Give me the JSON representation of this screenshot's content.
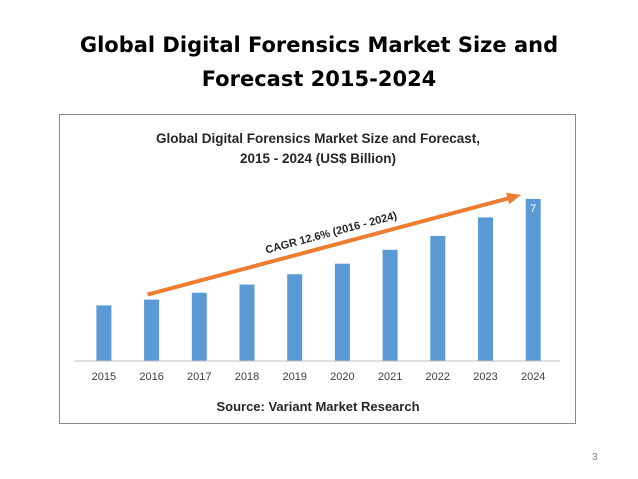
{
  "slide": {
    "title_line1": "Global Digital Forensics Market Size and",
    "title_line2": "Forecast 2015-2024",
    "page_number": "3"
  },
  "chart_data": {
    "type": "bar",
    "title_line1": "Global Digital Forensics Market Size and Forecast,",
    "title_line2": "2015 - 2024 (US$ Billion)",
    "categories": [
      "2015",
      "2016",
      "2017",
      "2018",
      "2019",
      "2020",
      "2021",
      "2022",
      "2023",
      "2024"
    ],
    "values": [
      2.4,
      2.65,
      2.95,
      3.3,
      3.75,
      4.2,
      4.8,
      5.4,
      6.2,
      7.0
    ],
    "data_labels": [
      "",
      "",
      "",
      "",
      "",
      "",
      "",
      "",
      "",
      "7"
    ],
    "annotation": "CAGR 12.6% (2016 - 2024)",
    "source": "Source: Variant Market Research",
    "ylim": [
      0,
      7.6
    ],
    "grid": false,
    "legend": "none",
    "colors": {
      "bar": "#5b9bd5",
      "arrow": "#ed7d31",
      "axis": "#bfbfbf",
      "text": "#404040"
    }
  }
}
